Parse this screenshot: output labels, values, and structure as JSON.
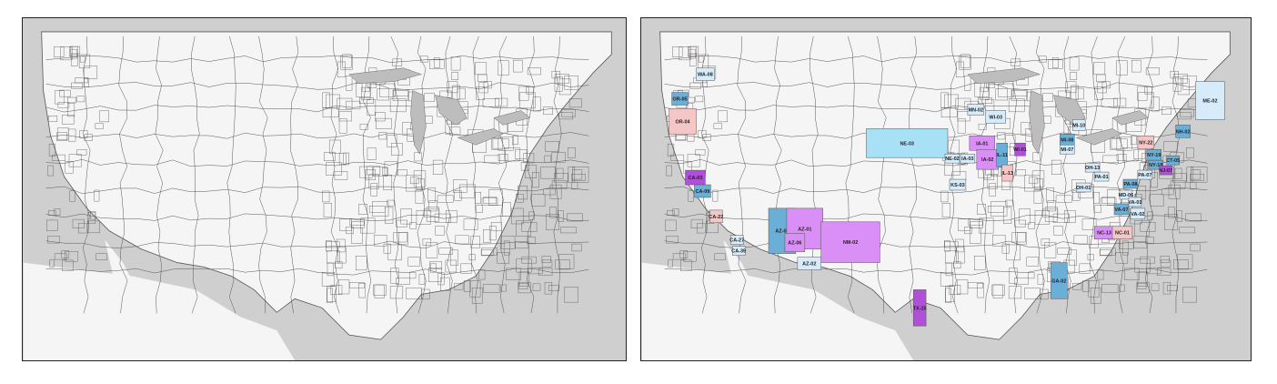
{
  "maps": [
    {
      "id": "baseline",
      "highlighted": []
    },
    {
      "id": "highlighted",
      "highlighted": [
        {
          "label": "WA-08",
          "color": "#d6ecfb"
        },
        {
          "label": "OR-05",
          "color": "#6baed6"
        },
        {
          "label": "OR-04",
          "color": "#f4c6c6"
        },
        {
          "label": "CA-03",
          "color": "#b04fd8"
        },
        {
          "label": "CA-09",
          "color": "#6baed6"
        },
        {
          "label": "CA-22",
          "color": "#f4c6c6"
        },
        {
          "label": "CA-27",
          "color": "#d6ecfb"
        },
        {
          "label": "CA-39",
          "color": "#d6ecfb"
        },
        {
          "label": "AZ-04",
          "color": "#6baed6"
        },
        {
          "label": "AZ-01",
          "color": "#d98ff5"
        },
        {
          "label": "AZ-06",
          "color": "#d98ff5"
        },
        {
          "label": "AZ-02",
          "color": "#d6ecfb"
        },
        {
          "label": "NM-02",
          "color": "#d98ff5"
        },
        {
          "label": "NE-03",
          "color": "#a8e0f5"
        },
        {
          "label": "NE-02",
          "color": "#d6ecfb"
        },
        {
          "label": "IA-03",
          "color": "#d6ecfb"
        },
        {
          "label": "IA-01",
          "color": "#d98ff5"
        },
        {
          "label": "IA-02",
          "color": "#d98ff5"
        },
        {
          "label": "IL-11",
          "color": "#6baed6"
        },
        {
          "label": "IL-13",
          "color": "#f4c6c6"
        },
        {
          "label": "KS-03",
          "color": "#d6ecfb"
        },
        {
          "label": "MN-02",
          "color": "#d6ecfb"
        },
        {
          "label": "WI-03",
          "color": "#d6ecfb"
        },
        {
          "label": "WI-01",
          "color": "#b04fd8"
        },
        {
          "label": "MI-10",
          "color": "#d6ecfb"
        },
        {
          "label": "MI-08",
          "color": "#6baed6"
        },
        {
          "label": "MI-07",
          "color": "#d6ecfb"
        },
        {
          "label": "OH-13",
          "color": "#d6ecfb"
        },
        {
          "label": "PA-01",
          "color": "#d6ecfb"
        },
        {
          "label": "OH-01",
          "color": "#d6ecfb"
        },
        {
          "label": "NY-22",
          "color": "#f4c6c6"
        },
        {
          "label": "NY-19",
          "color": "#6baed6"
        },
        {
          "label": "NY-18",
          "color": "#6baed6"
        },
        {
          "label": "NJ-07",
          "color": "#b04fd8"
        },
        {
          "label": "PA-07",
          "color": "#d6ecfb"
        },
        {
          "label": "PA-08",
          "color": "#6baed6"
        },
        {
          "label": "NH-02",
          "color": "#6baed6"
        },
        {
          "label": "ME-02",
          "color": "#d6ecfb"
        },
        {
          "label": "CT-05",
          "color": "#6baed6"
        },
        {
          "label": "VA-02",
          "color": "#d6ecfb"
        },
        {
          "label": "VA-07",
          "color": "#6baed6"
        },
        {
          "label": "NC-13",
          "color": "#d98ff5"
        },
        {
          "label": "NC-01",
          "color": "#f4c6c6"
        },
        {
          "label": "GA-02",
          "color": "#6baed6"
        },
        {
          "label": "TX-15",
          "color": "#b04fd8"
        },
        {
          "label": "MD-06",
          "color": "#d6ecfb"
        },
        {
          "label": "VA-01",
          "color": "#d6ecfb"
        }
      ]
    }
  ],
  "colors": {
    "ocean": "#cfcfcf",
    "land": "#f5f5f5",
    "border": "#555555",
    "lakes": "#bdbdbd"
  }
}
